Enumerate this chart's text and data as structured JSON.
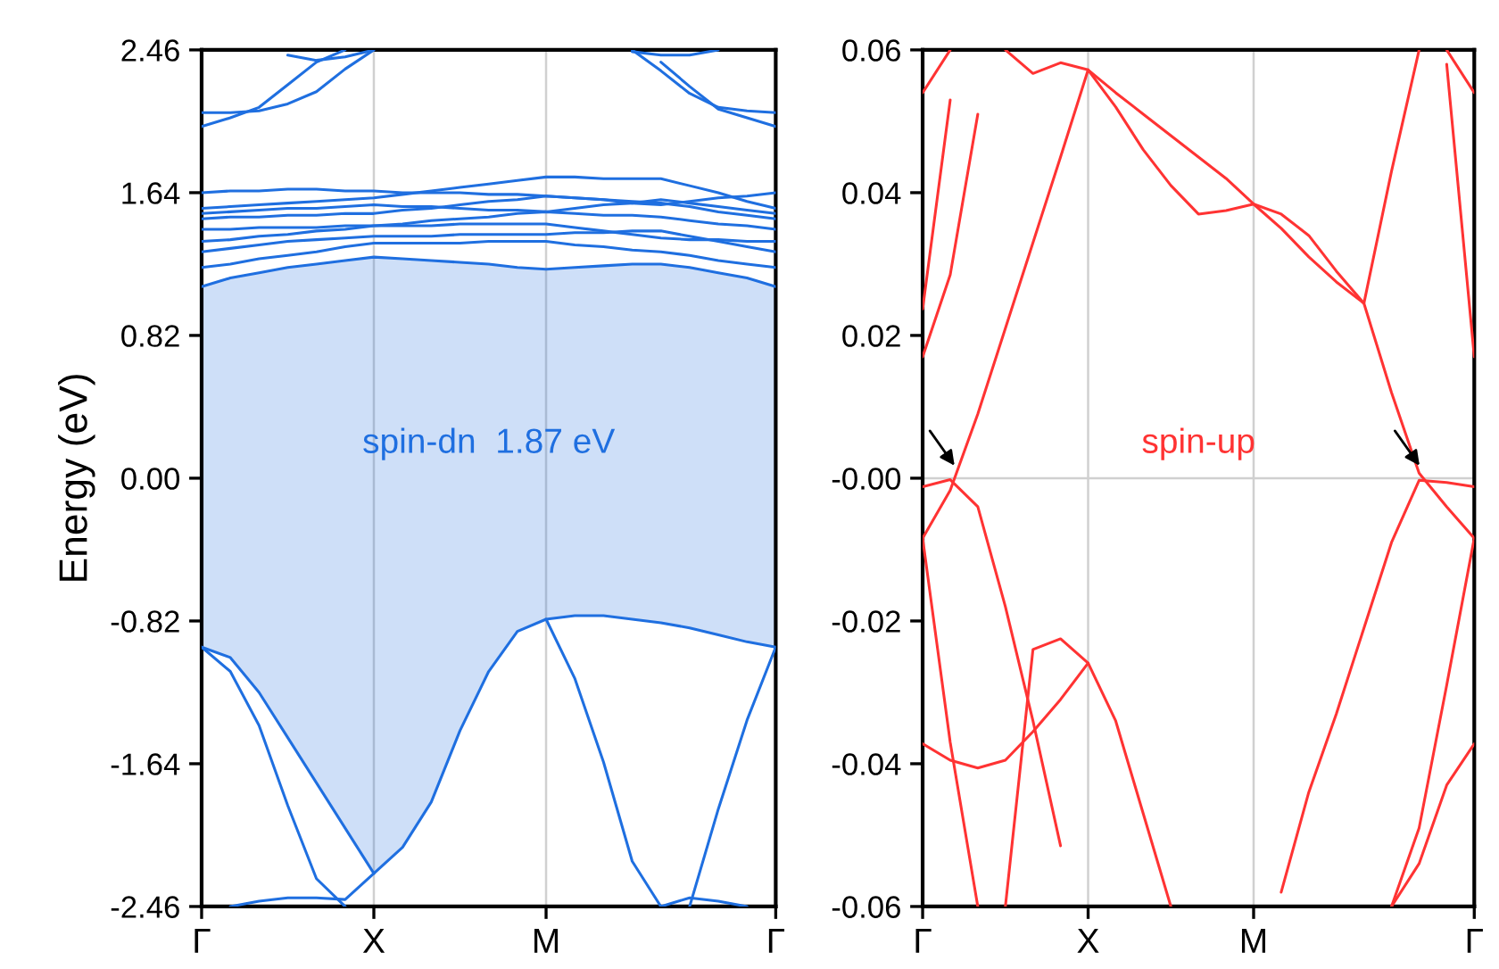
{
  "chart_data": [
    {
      "type": "line",
      "ylabel": "Energy (eV)",
      "categories": [
        "Γ",
        null,
        null,
        null,
        null,
        null,
        "X",
        null,
        null,
        null,
        null,
        null,
        "M",
        null,
        null,
        null,
        null,
        null,
        null,
        null,
        "Γ"
      ],
      "ylim": [
        -2.46,
        2.46
      ],
      "yticks": [
        2.46,
        1.64,
        0.82,
        {
          "value": 0,
          "label": "0.00"
        },
        -0.82,
        -1.64,
        -2.46
      ],
      "grid": "x",
      "legend": false,
      "marker": "none",
      "line_style": "solid",
      "annotations": [
        "spin-dn  1.87 eV"
      ],
      "series": [
        {
          "color": "#1f6fe0",
          "values": [
            -0.97,
            -1.03,
            -1.23,
            -1.49,
            -1.75,
            -2.01,
            -2.27,
            -2.12,
            -1.86,
            -1.45,
            -1.11,
            -0.88,
            -0.81,
            -0.79,
            -0.79,
            -0.81,
            -0.83,
            -0.86,
            -0.9,
            -0.94,
            -0.97
          ],
          "lower": [
            -0.97,
            -1.03,
            -1.23,
            -1.49,
            -1.75,
            -2.01,
            -2.27,
            -2.12,
            -1.86,
            -1.45,
            -1.11,
            -0.88,
            -0.81,
            -0.79,
            -0.79,
            -0.81,
            -0.83,
            -0.86,
            -0.9,
            -0.94,
            -0.97
          ],
          "upper": [
            1.1,
            1.15,
            1.18,
            1.21,
            1.23,
            1.25,
            1.27,
            1.26,
            1.25,
            1.24,
            1.23,
            1.21,
            1.2,
            1.21,
            1.22,
            1.23,
            1.23,
            1.21,
            1.18,
            1.15,
            1.1
          ]
        },
        {
          "color": "#1f6fe0",
          "values": [
            -0.97,
            -1.11,
            -1.42,
            -1.88,
            -2.3,
            -2.46,
            null,
            null,
            null,
            null,
            null,
            null,
            null,
            null,
            null,
            null,
            null,
            null,
            null,
            null,
            null
          ]
        },
        {
          "color": "#1f6fe0",
          "values": [
            null,
            null,
            null,
            null,
            null,
            null,
            null,
            null,
            null,
            null,
            null,
            null,
            -0.81,
            -1.15,
            -1.63,
            -2.2,
            -2.46,
            null,
            null,
            null,
            null
          ]
        },
        {
          "color": "#1f6fe0",
          "values": [
            null,
            null,
            null,
            null,
            null,
            null,
            null,
            null,
            null,
            null,
            null,
            null,
            null,
            null,
            null,
            null,
            null,
            -2.46,
            -1.9,
            -1.39,
            -0.97
          ]
        },
        {
          "color": "#1f6fe0",
          "values": [
            null,
            -2.46,
            -2.43,
            -2.41,
            -2.41,
            -2.42,
            -2.27,
            null,
            null,
            null,
            null,
            null,
            null,
            null,
            null,
            null,
            null,
            null,
            null,
            null,
            null
          ]
        },
        {
          "color": "#1f6fe0",
          "values": [
            null,
            null,
            null,
            null,
            null,
            null,
            null,
            null,
            null,
            null,
            null,
            null,
            null,
            null,
            null,
            null,
            -2.46,
            -2.41,
            -2.43,
            -2.46,
            null
          ]
        },
        {
          "color": "#1f6fe0",
          "values": [
            1.1,
            1.15,
            1.18,
            1.21,
            1.23,
            1.25,
            1.27,
            1.26,
            1.25,
            1.24,
            1.23,
            1.21,
            1.2,
            1.21,
            1.22,
            1.23,
            1.23,
            1.21,
            1.18,
            1.15,
            1.1
          ]
        },
        {
          "color": "#1f6fe0",
          "values": [
            1.21,
            1.23,
            1.26,
            1.28,
            1.3,
            1.33,
            1.35,
            1.35,
            1.35,
            1.35,
            1.36,
            1.36,
            1.36,
            1.34,
            1.33,
            1.31,
            1.3,
            1.28,
            1.25,
            1.23,
            1.21
          ]
        },
        {
          "color": "#1f6fe0",
          "values": [
            1.3,
            1.32,
            1.34,
            1.36,
            1.37,
            1.38,
            1.39,
            1.39,
            1.39,
            1.4,
            1.4,
            1.4,
            1.4,
            1.41,
            1.41,
            1.42,
            1.42,
            1.39,
            1.36,
            1.33,
            1.3
          ]
        },
        {
          "color": "#1f6fe0",
          "values": [
            1.36,
            1.37,
            1.39,
            1.4,
            1.42,
            1.43,
            1.45,
            1.45,
            1.45,
            1.46,
            1.46,
            1.46,
            1.46,
            1.44,
            1.42,
            1.4,
            1.38,
            1.37,
            1.37,
            1.36,
            1.36
          ]
        },
        {
          "color": "#1f6fe0",
          "values": [
            1.43,
            1.43,
            1.44,
            1.44,
            1.44,
            1.45,
            1.45,
            1.46,
            1.48,
            1.49,
            1.5,
            1.52,
            1.53,
            1.52,
            1.51,
            1.51,
            1.5,
            1.48,
            1.46,
            1.45,
            1.43
          ]
        },
        {
          "color": "#1f6fe0",
          "values": [
            1.49,
            1.5,
            1.5,
            1.51,
            1.51,
            1.52,
            1.52,
            1.54,
            1.55,
            1.57,
            1.59,
            1.6,
            1.62,
            1.61,
            1.6,
            1.59,
            1.58,
            1.56,
            1.53,
            1.51,
            1.49
          ]
        },
        {
          "color": "#1f6fe0",
          "values": [
            1.52,
            1.53,
            1.54,
            1.55,
            1.55,
            1.56,
            1.57,
            1.56,
            1.56,
            1.55,
            1.54,
            1.54,
            1.53,
            1.55,
            1.57,
            1.58,
            1.6,
            1.58,
            1.56,
            1.54,
            1.52
          ]
        },
        {
          "color": "#1f6fe0",
          "values": [
            1.55,
            1.56,
            1.57,
            1.58,
            1.59,
            1.6,
            1.61,
            1.63,
            1.65,
            1.67,
            1.69,
            1.71,
            1.73,
            1.73,
            1.72,
            1.72,
            1.72,
            1.68,
            1.64,
            1.59,
            1.55
          ]
        },
        {
          "color": "#1f6fe0",
          "values": [
            1.64,
            1.65,
            1.65,
            1.66,
            1.66,
            1.65,
            1.65,
            1.64,
            1.64,
            1.64,
            1.63,
            1.63,
            1.62,
            1.61,
            1.6,
            1.58,
            1.57,
            1.59,
            1.61,
            1.62,
            1.64
          ]
        },
        {
          "color": "#1f6fe0",
          "values": [
            2.02,
            2.07,
            2.13,
            2.26,
            2.39,
            2.46,
            null,
            null,
            null,
            null,
            null,
            null,
            null,
            null,
            null,
            null,
            null,
            null,
            null,
            null,
            null
          ]
        },
        {
          "color": "#1f6fe0",
          "values": [
            2.1,
            2.1,
            2.11,
            2.15,
            2.22,
            2.35,
            2.46,
            null,
            null,
            null,
            null,
            null,
            null,
            null,
            null,
            null,
            null,
            null,
            null,
            null,
            null
          ]
        },
        {
          "color": "#1f6fe0",
          "values": [
            null,
            null,
            null,
            2.43,
            2.4,
            2.42,
            2.46,
            null,
            null,
            null,
            null,
            null,
            null,
            null,
            null,
            null,
            null,
            null,
            null,
            null,
            null
          ]
        },
        {
          "color": "#1f6fe0",
          "values": [
            null,
            null,
            null,
            null,
            null,
            null,
            null,
            null,
            null,
            null,
            null,
            null,
            null,
            null,
            null,
            2.46,
            2.34,
            2.21,
            2.13,
            2.11,
            2.1
          ]
        },
        {
          "color": "#1f6fe0",
          "values": [
            null,
            null,
            null,
            null,
            null,
            null,
            null,
            null,
            null,
            null,
            null,
            null,
            null,
            null,
            null,
            null,
            2.39,
            2.25,
            2.12,
            2.07,
            2.02
          ]
        },
        {
          "color": "#1f6fe0",
          "values": [
            null,
            null,
            null,
            null,
            null,
            null,
            null,
            null,
            null,
            null,
            null,
            null,
            null,
            null,
            null,
            2.45,
            2.43,
            2.43,
            2.46,
            null,
            null
          ]
        }
      ]
    },
    {
      "type": "line",
      "categories": [
        "Γ",
        null,
        null,
        null,
        null,
        null,
        "X",
        null,
        null,
        null,
        null,
        null,
        "M",
        null,
        null,
        null,
        null,
        null,
        null,
        null,
        "Γ"
      ],
      "ylim": [
        -0.06,
        0.06
      ],
      "yticks": [
        0.06,
        0.04,
        0.02,
        {
          "value": 0,
          "label": "-0.00"
        },
        -0.02,
        -0.04,
        -0.06
      ],
      "grid": "x",
      "legend": false,
      "marker": "none",
      "line_style": "solid",
      "ref_lines": [
        {
          "axis": "y",
          "value": 0,
          "color": "#d0d0d0"
        }
      ],
      "annotations": [
        "spin-up"
      ],
      "series": [
        {
          "color": "#ff3333",
          "values": [
            null,
            null,
            null,
            0.06,
            0.0567,
            0.0582,
            0.0572,
            0.052,
            0.046,
            0.041,
            0.037,
            0.0375,
            0.0384,
            0.037,
            0.034,
            0.029,
            0.0245,
            0.043,
            0.06,
            null,
            null
          ]
        },
        {
          "color": "#ff3333",
          "values": [
            -0.0084,
            -0.0017,
            0.009,
            0.021,
            0.033,
            0.045,
            0.0572,
            0.054,
            0.051,
            0.048,
            0.045,
            0.042,
            0.0384,
            0.035,
            0.031,
            0.0275,
            0.0245,
            0.012,
            0.0007,
            -0.004,
            -0.0084
          ]
        },
        {
          "color": "#ff3333",
          "values": [
            0.054,
            0.06,
            null,
            null,
            null,
            null,
            null,
            null,
            null,
            null,
            null,
            null,
            null,
            null,
            null,
            null,
            null,
            null,
            null,
            null,
            null
          ]
        },
        {
          "color": "#ff3333",
          "values": [
            0.0237,
            0.053,
            null,
            null,
            null,
            null,
            null,
            null,
            null,
            null,
            null,
            null,
            null,
            null,
            null,
            null,
            null,
            null,
            null,
            null,
            null
          ]
        },
        {
          "color": "#ff3333",
          "values": [
            0.017,
            0.0285,
            0.051,
            null,
            null,
            null,
            null,
            null,
            null,
            null,
            null,
            null,
            null,
            null,
            null,
            null,
            null,
            null,
            null,
            null,
            null
          ]
        },
        {
          "color": "#ff3333",
          "values": [
            null,
            null,
            null,
            null,
            null,
            null,
            null,
            null,
            null,
            null,
            null,
            null,
            null,
            null,
            null,
            null,
            null,
            null,
            null,
            0.06,
            0.054
          ]
        },
        {
          "color": "#ff3333",
          "values": [
            null,
            null,
            null,
            null,
            null,
            null,
            null,
            null,
            null,
            null,
            null,
            null,
            null,
            null,
            null,
            null,
            null,
            null,
            null,
            0.058,
            0.017
          ]
        },
        {
          "color": "#ff3333",
          "values": [
            -0.0012,
            -0.0002,
            -0.004,
            -0.018,
            -0.034,
            -0.0515,
            null,
            null,
            null,
            null,
            null,
            null,
            null,
            null,
            null,
            null,
            null,
            null,
            null,
            null,
            null
          ]
        },
        {
          "color": "#ff3333",
          "values": [
            -0.0084,
            -0.037,
            -0.06,
            null,
            null,
            null,
            null,
            null,
            null,
            null,
            null,
            null,
            null,
            null,
            null,
            null,
            null,
            null,
            null,
            null,
            null
          ]
        },
        {
          "color": "#ff3333",
          "values": [
            null,
            null,
            null,
            -0.06,
            -0.024,
            -0.0225,
            -0.0259,
            -0.034,
            -0.047,
            -0.06,
            null,
            null,
            null,
            null,
            null,
            null,
            null,
            null,
            null,
            null,
            null
          ]
        },
        {
          "color": "#ff3333",
          "values": [
            -0.0372,
            -0.0395,
            -0.0406,
            -0.0395,
            -0.0355,
            -0.031,
            -0.0259,
            null,
            null,
            null,
            null,
            null,
            null,
            null,
            null,
            null,
            null,
            null,
            null,
            null,
            null
          ]
        },
        {
          "color": "#ff3333",
          "values": [
            null,
            null,
            null,
            null,
            null,
            null,
            null,
            null,
            null,
            null,
            null,
            null,
            null,
            -0.058,
            -0.044,
            -0.033,
            -0.021,
            -0.009,
            -0.0003,
            -0.0006,
            -0.0012
          ]
        },
        {
          "color": "#ff3333",
          "values": [
            null,
            null,
            null,
            null,
            null,
            null,
            null,
            null,
            null,
            null,
            null,
            null,
            null,
            null,
            null,
            null,
            null,
            -0.06,
            -0.054,
            -0.043,
            -0.0372
          ]
        },
        {
          "color": "#ff3333",
          "values": [
            null,
            null,
            null,
            null,
            null,
            null,
            null,
            null,
            null,
            null,
            null,
            null,
            null,
            null,
            null,
            null,
            null,
            -0.06,
            -0.049,
            -0.029,
            -0.0084
          ]
        }
      ]
    }
  ]
}
